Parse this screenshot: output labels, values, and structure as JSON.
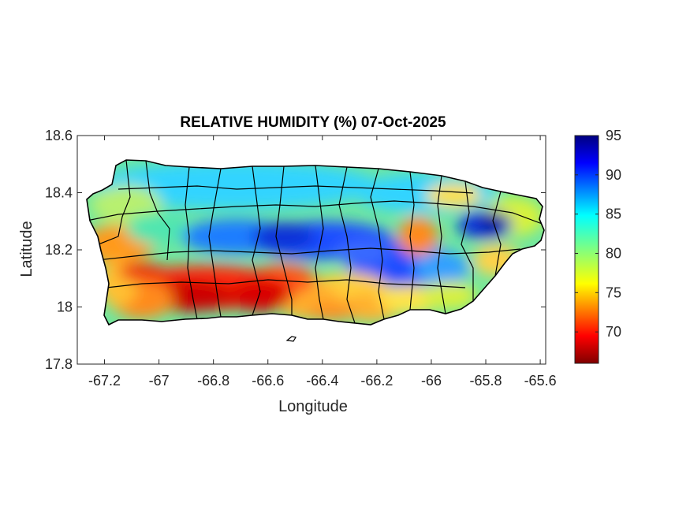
{
  "chart_data": {
    "type": "heatmap",
    "title": "RELATIVE HUMIDITY (%) 07-Oct-2025",
    "xlabel": "Longitude",
    "ylabel": "Latitude",
    "xlim": [
      -67.3,
      -65.58
    ],
    "ylim": [
      17.8,
      18.6
    ],
    "xticks": [
      -67.2,
      -67,
      -66.8,
      -66.6,
      -66.4,
      -66.2,
      -66,
      -65.8,
      -65.6
    ],
    "xtick_labels": [
      "-67.2",
      "-67",
      "-66.8",
      "-66.6",
      "-66.4",
      "-66.2",
      "-66",
      "-65.8",
      "-65.6"
    ],
    "yticks": [
      17.8,
      18,
      18.2,
      18.4,
      18.6
    ],
    "ytick_labels": [
      "17.8",
      "18",
      "18.2",
      "18.4",
      "18.6"
    ],
    "colorbar": {
      "range": [
        66,
        95
      ],
      "ticks": [
        70,
        75,
        80,
        85,
        90,
        95
      ],
      "tick_labels": [
        "70",
        "75",
        "80",
        "85",
        "90",
        "95"
      ],
      "colormap": "jet"
    },
    "regions": [
      {
        "name": "",
        "lon": -66.6,
        "lat": 18.03,
        "value": 67
      },
      {
        "name": "",
        "lon": -66.85,
        "lat": 18.05,
        "value": 68
      },
      {
        "name": "",
        "lon": -66.4,
        "lat": 18.23,
        "value": 92
      },
      {
        "name": "",
        "lon": -65.8,
        "lat": 18.29,
        "value": 93
      },
      {
        "name": "",
        "lon": -66.6,
        "lat": 18.45,
        "value": 84
      }
    ]
  }
}
